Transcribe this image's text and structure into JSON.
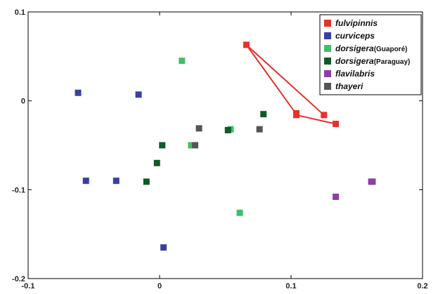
{
  "chart_data": {
    "type": "scatter",
    "title": "",
    "xlabel": "",
    "ylabel": "",
    "xlim": [
      -0.1,
      0.2
    ],
    "ylim": [
      -0.2,
      0.1
    ],
    "x_ticks": [
      "-0.1",
      "0",
      "0.1",
      "0.2"
    ],
    "x_tick_values": [
      -0.1,
      0,
      0.1,
      0.2
    ],
    "y_ticks": [
      "0.1",
      "0",
      "-0.1",
      "-0.2"
    ],
    "y_tick_values": [
      0.1,
      0,
      -0.1,
      -0.2
    ],
    "grid": false,
    "legend_position": "top-right",
    "series": [
      {
        "name": "fulvipinnis",
        "name_suffix": "",
        "color": "#e8302c",
        "points": [
          [
            0.066,
            0.063
          ],
          [
            0.104,
            -0.014
          ],
          [
            0.104,
            -0.016
          ],
          [
            0.125,
            -0.016
          ],
          [
            0.134,
            -0.026
          ]
        ]
      },
      {
        "name": "curviceps",
        "name_suffix": "",
        "color": "#3a3fa6",
        "points": [
          [
            -0.062,
            0.009
          ],
          [
            -0.016,
            0.007
          ],
          [
            -0.056,
            -0.09
          ],
          [
            -0.033,
            -0.09
          ],
          [
            0.003,
            -0.165
          ]
        ]
      },
      {
        "name": "dorsigera",
        "name_suffix": "(Guaporé)",
        "color": "#3fbf6a",
        "points": [
          [
            0.017,
            0.045
          ],
          [
            0.054,
            -0.032
          ],
          [
            0.024,
            -0.05
          ],
          [
            0.061,
            -0.126
          ]
        ]
      },
      {
        "name": "dorsigera",
        "name_suffix": "(Paraguay)",
        "color": "#0f5a2a",
        "points": [
          [
            0.079,
            -0.015
          ],
          [
            0.052,
            -0.033
          ],
          [
            0.002,
            -0.05
          ],
          [
            -0.002,
            -0.07
          ],
          [
            -0.01,
            -0.091
          ]
        ]
      },
      {
        "name": "flavilabris",
        "name_suffix": "",
        "color": "#8b3fa8",
        "points": [
          [
            0.134,
            -0.108
          ],
          [
            0.161,
            -0.091
          ],
          [
            0.162,
            -0.091
          ]
        ]
      },
      {
        "name": "thayeri",
        "name_suffix": "",
        "color": "#555555",
        "points": [
          [
            0.03,
            -0.031
          ],
          [
            0.076,
            -0.032
          ],
          [
            0.027,
            -0.05
          ]
        ]
      }
    ],
    "connector_lines": [
      {
        "series": "fulvipinnis",
        "from": [
          0.066,
          0.063
        ],
        "to": [
          0.104,
          -0.015
        ]
      },
      {
        "series": "fulvipinnis",
        "from": [
          0.066,
          0.063
        ],
        "to": [
          0.125,
          -0.016
        ]
      },
      {
        "series": "fulvipinnis",
        "from": [
          0.104,
          -0.016
        ],
        "to": [
          0.134,
          -0.026
        ]
      }
    ]
  }
}
